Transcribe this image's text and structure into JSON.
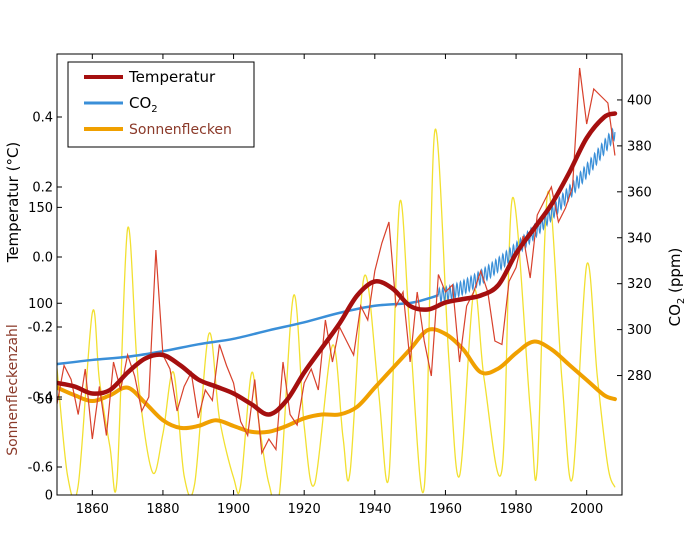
{
  "chart_data": {
    "type": "line",
    "xlim": [
      1850,
      2010
    ],
    "x_ticks": [
      1860,
      1880,
      1900,
      1920,
      1940,
      1960,
      1980,
      2000
    ],
    "left_upper_axis": {
      "label": "Temperatur (°C)",
      "ylim": [
        -0.68,
        0.58
      ],
      "ticks": [
        "0.4",
        "0.2",
        "0.0",
        "-0.2",
        "-0.4",
        "-0.6"
      ],
      "tick_values": [
        0.4,
        0.2,
        0.0,
        -0.2,
        -0.4,
        -0.6
      ]
    },
    "left_lower_axis": {
      "label": "Sonnenfleckenzahl",
      "label_color": "#8b3a2a",
      "ylim": [
        0,
        230
      ],
      "ticks": [
        "150",
        "100",
        "50",
        "0"
      ],
      "tick_values": [
        150,
        100,
        50,
        0
      ]
    },
    "right_axis": {
      "label_main": "CO",
      "label_sub": "2",
      "label_tail": " (ppm)",
      "ylim": [
        228,
        420
      ],
      "ticks": [
        "400",
        "380",
        "360",
        "340",
        "320",
        "300",
        "280"
      ],
      "tick_values": [
        400,
        380,
        360,
        340,
        320,
        300,
        280
      ]
    },
    "series": [
      {
        "name": "Temperatur",
        "color": "#a50f0f",
        "label_color": "#000000",
        "axis": "left_upper",
        "smooth": {
          "x": [
            1850,
            1855,
            1860,
            1865,
            1870,
            1875,
            1880,
            1885,
            1890,
            1895,
            1900,
            1905,
            1910,
            1915,
            1920,
            1925,
            1930,
            1935,
            1940,
            1945,
            1950,
            1955,
            1960,
            1965,
            1970,
            1975,
            1980,
            1985,
            1990,
            1995,
            2000,
            2005,
            2008
          ],
          "y": [
            -0.36,
            -0.37,
            -0.39,
            -0.38,
            -0.33,
            -0.29,
            -0.28,
            -0.31,
            -0.35,
            -0.37,
            -0.39,
            -0.42,
            -0.45,
            -0.41,
            -0.33,
            -0.26,
            -0.19,
            -0.11,
            -0.07,
            -0.09,
            -0.14,
            -0.15,
            -0.13,
            -0.12,
            -0.11,
            -0.08,
            0.01,
            0.08,
            0.15,
            0.24,
            0.34,
            0.4,
            0.41
          ]
        },
        "annual": {
          "x": [
            1850,
            1852,
            1854,
            1856,
            1858,
            1860,
            1862,
            1864,
            1866,
            1868,
            1870,
            1872,
            1874,
            1876,
            1878,
            1880,
            1882,
            1884,
            1886,
            1888,
            1890,
            1892,
            1894,
            1896,
            1898,
            1900,
            1902,
            1904,
            1906,
            1908,
            1910,
            1912,
            1914,
            1916,
            1918,
            1920,
            1922,
            1924,
            1926,
            1928,
            1930,
            1932,
            1934,
            1936,
            1938,
            1940,
            1942,
            1944,
            1946,
            1948,
            1950,
            1952,
            1954,
            1956,
            1958,
            1960,
            1962,
            1964,
            1966,
            1968,
            1970,
            1972,
            1974,
            1976,
            1978,
            1980,
            1982,
            1984,
            1986,
            1988,
            1990,
            1992,
            1994,
            1996,
            1998,
            2000,
            2002,
            2004,
            2006,
            2008
          ],
          "y": [
            -0.42,
            -0.31,
            -0.35,
            -0.45,
            -0.32,
            -0.52,
            -0.37,
            -0.51,
            -0.3,
            -0.38,
            -0.28,
            -0.34,
            -0.44,
            -0.4,
            0.02,
            -0.28,
            -0.32,
            -0.44,
            -0.37,
            -0.33,
            -0.46,
            -0.38,
            -0.41,
            -0.25,
            -0.31,
            -0.36,
            -0.47,
            -0.51,
            -0.35,
            -0.56,
            -0.52,
            -0.55,
            -0.3,
            -0.45,
            -0.48,
            -0.36,
            -0.32,
            -0.38,
            -0.18,
            -0.3,
            -0.2,
            -0.24,
            -0.28,
            -0.14,
            -0.18,
            -0.04,
            0.04,
            0.1,
            -0.14,
            -0.1,
            -0.3,
            -0.1,
            -0.24,
            -0.34,
            -0.05,
            -0.1,
            -0.08,
            -0.3,
            -0.14,
            -0.1,
            -0.04,
            -0.1,
            -0.24,
            -0.25,
            -0.07,
            -0.03,
            0.06,
            -0.06,
            0.12,
            0.16,
            0.2,
            0.1,
            0.14,
            0.2,
            0.54,
            0.38,
            0.48,
            0.46,
            0.44,
            0.29
          ]
        }
      },
      {
        "name": "CO",
        "name_sub": "2",
        "color": "#3a8fd8",
        "label_color": "#000000",
        "axis": "right",
        "smooth": {
          "x": [
            1850,
            1860,
            1870,
            1880,
            1890,
            1900,
            1910,
            1920,
            1930,
            1940,
            1950,
            1955,
            1958
          ],
          "y": [
            285,
            286.8,
            288.2,
            290.6,
            293.6,
            296.0,
            299.7,
            303.2,
            307.3,
            310.4,
            311.6,
            313.5,
            315.0
          ]
        },
        "seasonal": {
          "x_start": 1958,
          "x_end": 2008,
          "y_start": 315.0,
          "y_end": 386.0,
          "amplitude": 3.0
        }
      },
      {
        "name": "Sonnenflecken",
        "color": "#f0a000",
        "raw_color": "#f2e030",
        "label_color": "#8b3a2a",
        "axis": "left_lower",
        "smooth": {
          "x": [
            1850,
            1855,
            1860,
            1865,
            1870,
            1875,
            1880,
            1885,
            1890,
            1895,
            1900,
            1905,
            1910,
            1915,
            1920,
            1925,
            1930,
            1935,
            1940,
            1945,
            1950,
            1955,
            1960,
            1965,
            1970,
            1975,
            1980,
            1985,
            1990,
            1995,
            2000,
            2005,
            2008
          ],
          "y": [
            56,
            52,
            49,
            52,
            56,
            48,
            39,
            35,
            36,
            39,
            36,
            33,
            33,
            36,
            40,
            42,
            42,
            46,
            56,
            66,
            76,
            86,
            84,
            76,
            64,
            66,
            74,
            80,
            76,
            68,
            60,
            52,
            50
          ]
        },
        "raw": {
          "x": [
            1850,
            1853,
            1856,
            1860,
            1862,
            1865,
            1867,
            1870,
            1873,
            1877,
            1880,
            1883,
            1886,
            1889,
            1893,
            1896,
            1900,
            1902,
            1905,
            1907,
            1910,
            1913,
            1917,
            1920,
            1923,
            1928,
            1931,
            1933,
            1937,
            1941,
            1944,
            1947,
            1950,
            1954,
            1957,
            1961,
            1964,
            1968,
            1971,
            1976,
            1979,
            1984,
            1986,
            1989,
            1993,
            1996,
            2000,
            2003,
            2006,
            2008
          ],
          "y": [
            66,
            10,
            5,
            95,
            60,
            25,
            8,
            139,
            60,
            12,
            32,
            64,
            10,
            6,
            84,
            40,
            9,
            5,
            63,
            40,
            6,
            1,
            104,
            36,
            6,
            78,
            30,
            12,
            114,
            55,
            10,
            152,
            83,
            4,
            190,
            70,
            10,
            106,
            60,
            13,
            155,
            45,
            14,
            158,
            60,
            9,
            120,
            62,
            15,
            4
          ]
        }
      }
    ],
    "legend": {
      "position": "top-left",
      "border": true
    }
  }
}
